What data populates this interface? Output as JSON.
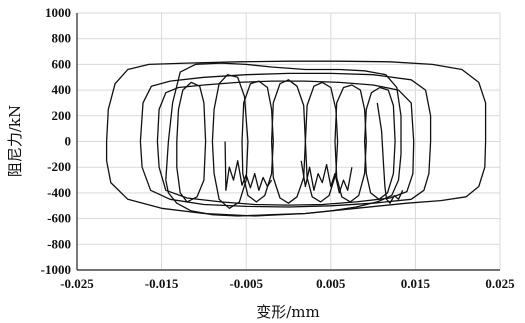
{
  "chart_data": {
    "type": "line",
    "title": "",
    "xlabel": "变形/mm",
    "ylabel": "阻尼力/kN",
    "xlim": [
      -0.025,
      0.025
    ],
    "ylim": [
      -1000,
      1000
    ],
    "x_ticks": [
      -0.025,
      -0.015,
      -0.005,
      0.005,
      0.015,
      0.025
    ],
    "x_tick_labels": [
      "-0.025",
      "-0.015",
      "-0.005",
      "0.005",
      "0.015",
      "0.025"
    ],
    "y_ticks": [
      1000,
      800,
      600,
      400,
      200,
      0,
      -200,
      -400,
      -600,
      -800,
      -1000
    ],
    "y_tick_labels": [
      "1000",
      "800",
      "600",
      "400",
      "200",
      "0",
      "-200",
      "-400",
      "-600",
      "-800",
      "-1000"
    ],
    "grid": true,
    "line_color": "#111111",
    "series": [
      {
        "values": [
          [
            -0.0215,
            0
          ],
          [
            -0.0213,
            250
          ],
          [
            -0.0205,
            450
          ],
          [
            -0.019,
            560
          ],
          [
            -0.0165,
            600
          ],
          [
            -0.012,
            610
          ],
          [
            -0.006,
            620
          ],
          [
            0,
            625
          ],
          [
            0.006,
            625
          ],
          [
            0.012,
            620
          ],
          [
            0.017,
            600
          ],
          [
            0.0205,
            560
          ],
          [
            0.0225,
            460
          ],
          [
            0.0233,
            300
          ],
          [
            0.0233,
            0
          ],
          [
            0.0232,
            -200
          ],
          [
            0.0225,
            -350
          ],
          [
            0.021,
            -430
          ],
          [
            0.018,
            -460
          ],
          [
            0.014,
            -480
          ],
          [
            0.008,
            -520
          ],
          [
            0.002,
            -560
          ],
          [
            -0.004,
            -580
          ],
          [
            -0.01,
            -560
          ],
          [
            -0.015,
            -520
          ],
          [
            -0.019,
            -450
          ],
          [
            -0.021,
            -320
          ],
          [
            -0.0215,
            -150
          ],
          [
            -0.0215,
            0
          ]
        ]
      },
      {
        "values": [
          [
            -0.0175,
            0
          ],
          [
            -0.0172,
            300
          ],
          [
            -0.0162,
            430
          ],
          [
            -0.014,
            470
          ],
          [
            -0.01,
            500
          ],
          [
            -0.005,
            520
          ],
          [
            0,
            530
          ],
          [
            0.005,
            530
          ],
          [
            0.01,
            520
          ],
          [
            0.0145,
            480
          ],
          [
            0.0162,
            400
          ],
          [
            0.0168,
            200
          ],
          [
            0.0168,
            0
          ],
          [
            0.0166,
            -250
          ],
          [
            0.016,
            -380
          ],
          [
            0.0145,
            -450
          ],
          [
            0.01,
            -480
          ],
          [
            0.005,
            -500
          ],
          [
            0,
            -510
          ],
          [
            -0.005,
            -505
          ],
          [
            -0.01,
            -490
          ],
          [
            -0.014,
            -450
          ],
          [
            -0.0163,
            -380
          ],
          [
            -0.0173,
            -200
          ],
          [
            -0.0175,
            0
          ]
        ]
      },
      {
        "values": [
          [
            -0.0155,
            0
          ],
          [
            -0.0153,
            250
          ],
          [
            -0.0145,
            380
          ],
          [
            -0.013,
            420
          ],
          [
            -0.01,
            440
          ],
          [
            -0.006,
            460
          ],
          [
            -0.002,
            470
          ],
          [
            0.002,
            470
          ],
          [
            0.006,
            460
          ],
          [
            0.01,
            440
          ],
          [
            0.013,
            400
          ],
          [
            0.0145,
            300
          ],
          [
            0.0148,
            0
          ],
          [
            0.0147,
            -250
          ],
          [
            0.014,
            -390
          ],
          [
            0.012,
            -440
          ],
          [
            0.008,
            -470
          ],
          [
            0.004,
            -490
          ],
          [
            0,
            -495
          ],
          [
            -0.004,
            -490
          ],
          [
            -0.008,
            -470
          ],
          [
            -0.012,
            -440
          ],
          [
            -0.0145,
            -380
          ],
          [
            -0.0153,
            -200
          ],
          [
            -0.0155,
            0
          ]
        ]
      },
      {
        "values": [
          [
            -0.0145,
            -300
          ],
          [
            -0.0142,
            0
          ],
          [
            -0.0137,
            300
          ],
          [
            -0.0128,
            540
          ],
          [
            -0.011,
            600
          ],
          [
            -0.008,
            610
          ],
          [
            -0.005,
            600
          ],
          [
            -0.002,
            580
          ],
          [
            0.002,
            560
          ],
          [
            0.006,
            560
          ],
          [
            0.009,
            550
          ],
          [
            0.0115,
            520
          ],
          [
            0.0128,
            420
          ],
          [
            0.0133,
            200
          ],
          [
            0.0133,
            -100
          ],
          [
            0.013,
            -300
          ],
          [
            0.0122,
            -420
          ],
          [
            0.0105,
            -470
          ],
          [
            0.008,
            -510
          ],
          [
            0.005,
            -540
          ],
          [
            0.002,
            -560
          ],
          [
            -0.002,
            -570
          ],
          [
            -0.006,
            -580
          ],
          [
            -0.009,
            -570
          ],
          [
            -0.0115,
            -540
          ],
          [
            -0.0132,
            -480
          ],
          [
            -0.0142,
            -400
          ],
          [
            -0.0145,
            -300
          ]
        ]
      },
      {
        "values": [
          [
            -0.0132,
            0
          ],
          [
            -0.013,
            250
          ],
          [
            -0.0125,
            400
          ],
          [
            -0.0115,
            460
          ],
          [
            -0.0105,
            430
          ],
          [
            -0.01,
            300
          ],
          [
            -0.0098,
            0
          ],
          [
            -0.01,
            -300
          ],
          [
            -0.0108,
            -430
          ],
          [
            -0.012,
            -470
          ],
          [
            -0.0128,
            -400
          ],
          [
            -0.0132,
            -200
          ],
          [
            -0.0132,
            0
          ]
        ]
      },
      {
        "values": [
          [
            -0.009,
            0
          ],
          [
            -0.0088,
            250
          ],
          [
            -0.0082,
            450
          ],
          [
            -0.0072,
            520
          ],
          [
            -0.006,
            500
          ],
          [
            -0.0052,
            350
          ],
          [
            -0.0048,
            0
          ],
          [
            -0.005,
            -300
          ],
          [
            -0.0058,
            -470
          ],
          [
            -0.007,
            -520
          ],
          [
            -0.0082,
            -450
          ],
          [
            -0.0088,
            -250
          ],
          [
            -0.009,
            0
          ]
        ]
      },
      {
        "values": [
          [
            -0.0055,
            0
          ],
          [
            -0.0053,
            300
          ],
          [
            -0.0045,
            450
          ],
          [
            -0.0035,
            470
          ],
          [
            -0.0025,
            420
          ],
          [
            -0.002,
            250
          ],
          [
            -0.0018,
            0
          ],
          [
            -0.002,
            -250
          ],
          [
            -0.0028,
            -420
          ],
          [
            -0.0038,
            -470
          ],
          [
            -0.0048,
            -420
          ],
          [
            -0.0054,
            -250
          ],
          [
            -0.0055,
            0
          ]
        ]
      },
      {
        "values": [
          [
            -0.002,
            0
          ],
          [
            -0.0018,
            300
          ],
          [
            -0.001,
            450
          ],
          [
            0,
            480
          ],
          [
            0.001,
            430
          ],
          [
            0.0018,
            280
          ],
          [
            0.002,
            0
          ],
          [
            0.0018,
            -280
          ],
          [
            0.001,
            -430
          ],
          [
            0,
            -480
          ],
          [
            -0.001,
            -440
          ],
          [
            -0.0018,
            -280
          ],
          [
            -0.002,
            0
          ]
        ]
      },
      {
        "values": [
          [
            0.002,
            0
          ],
          [
            0.0022,
            280
          ],
          [
            0.003,
            430
          ],
          [
            0.004,
            460
          ],
          [
            0.005,
            420
          ],
          [
            0.0056,
            250
          ],
          [
            0.0058,
            0
          ],
          [
            0.0056,
            -250
          ],
          [
            0.0048,
            -420
          ],
          [
            0.0038,
            -470
          ],
          [
            0.0028,
            -430
          ],
          [
            0.0022,
            -280
          ],
          [
            0.002,
            0
          ]
        ]
      },
      {
        "values": [
          [
            0.0055,
            0
          ],
          [
            0.0057,
            300
          ],
          [
            0.0065,
            420
          ],
          [
            0.0075,
            440
          ],
          [
            0.0085,
            400
          ],
          [
            0.009,
            250
          ],
          [
            0.0092,
            0
          ],
          [
            0.009,
            -250
          ],
          [
            0.0083,
            -420
          ],
          [
            0.0073,
            -470
          ],
          [
            0.0063,
            -430
          ],
          [
            0.0057,
            -280
          ],
          [
            0.0055,
            0
          ]
        ]
      },
      {
        "values": [
          [
            0.009,
            0
          ],
          [
            0.0092,
            250
          ],
          [
            0.0098,
            380
          ],
          [
            0.0108,
            420
          ],
          [
            0.0118,
            400
          ],
          [
            0.0124,
            280
          ],
          [
            0.0126,
            0
          ],
          [
            0.0124,
            -250
          ],
          [
            0.0117,
            -400
          ],
          [
            0.0107,
            -450
          ],
          [
            0.0097,
            -400
          ],
          [
            0.0092,
            -250
          ],
          [
            0.009,
            0
          ]
        ]
      },
      {
        "values": [
          [
            -0.0075,
            0
          ],
          [
            -0.0074,
            -380
          ],
          [
            -0.007,
            -200
          ],
          [
            -0.0065,
            -300
          ],
          [
            -0.006,
            -150
          ],
          [
            -0.0055,
            -340
          ],
          [
            -0.005,
            -260
          ],
          [
            -0.0045,
            -360
          ],
          [
            -0.004,
            -250
          ],
          [
            -0.0035,
            -380
          ],
          [
            -0.003,
            -280
          ],
          [
            -0.0025,
            -350
          ],
          [
            -0.002,
            -300
          ]
        ]
      },
      {
        "values": [
          [
            0.0015,
            -150
          ],
          [
            0.002,
            -350
          ],
          [
            0.0025,
            -200
          ],
          [
            0.003,
            -380
          ],
          [
            0.0035,
            -250
          ],
          [
            0.004,
            -320
          ],
          [
            0.0045,
            -180
          ],
          [
            0.005,
            -350
          ],
          [
            0.0055,
            -250
          ],
          [
            0.006,
            -400
          ],
          [
            0.0065,
            -300
          ],
          [
            0.007,
            -380
          ],
          [
            0.0075,
            -200
          ]
        ]
      },
      {
        "values": [
          [
            0.0105,
            300
          ],
          [
            0.011,
            80
          ],
          [
            0.0112,
            -150
          ],
          [
            0.0114,
            -350
          ],
          [
            0.0116,
            -450
          ],
          [
            0.012,
            -480
          ],
          [
            0.0125,
            -420
          ],
          [
            0.013,
            -450
          ],
          [
            0.0135,
            -380
          ]
        ]
      }
    ]
  }
}
